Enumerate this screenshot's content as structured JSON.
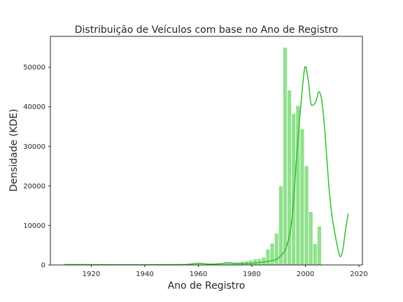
{
  "chart_data": {
    "type": "bar",
    "title": "Distribuição de Veículos com base no Ano de Registro",
    "xlabel": "Ano de Registro",
    "ylabel": "Densidade (KDE)",
    "xlim": [
      1904.7,
      2021.3
    ],
    "ylim": [
      0,
      57800
    ],
    "xticks": [
      1920,
      1940,
      1960,
      1980,
      2000,
      2020
    ],
    "yticks": [
      0,
      10000,
      20000,
      30000,
      40000,
      50000
    ],
    "grid": false,
    "colors": {
      "bar": "#90e28c",
      "bar_edge": "#ffffff",
      "kde": "#2ec02a"
    },
    "bins": {
      "start": 1910,
      "width": 1.6,
      "values": [
        200,
        80,
        60,
        60,
        50,
        60,
        60,
        70,
        60,
        60,
        60,
        60,
        60,
        60,
        60,
        60,
        60,
        60,
        70,
        70,
        70,
        80,
        100,
        100,
        100,
        100,
        120,
        140,
        180,
        200,
        300,
        320,
        200,
        250,
        350,
        400,
        350,
        400,
        500,
        600,
        700,
        900,
        1000,
        1200,
        1500,
        1600,
        2000,
        4000,
        5500,
        8000,
        20000,
        55000,
        44200,
        38300,
        40300,
        34400,
        25100,
        13500,
        5400,
        9800
      ]
    },
    "kde": {
      "x": [
        1910,
        1920,
        1930,
        1940,
        1950,
        1956,
        1960,
        1964,
        1968,
        1971,
        1974,
        1977,
        1980,
        1983,
        1986,
        1989,
        1991,
        1993,
        1995,
        1997,
        1998.5,
        1999.8,
        2001,
        2002,
        2003,
        2004,
        2005,
        2006,
        2007,
        2008,
        2009,
        2010,
        2011,
        2012,
        2013,
        2014,
        2015,
        2016
      ],
      "y": [
        100,
        80,
        60,
        60,
        80,
        150,
        450,
        200,
        300,
        550,
        400,
        350,
        450,
        600,
        900,
        1400,
        2500,
        4800,
        12000,
        30000,
        42000,
        50000,
        47000,
        41000,
        40500,
        41500,
        43800,
        42000,
        36000,
        27000,
        18000,
        12000,
        8000,
        4500,
        2100,
        4000,
        9000,
        13000
      ]
    }
  }
}
